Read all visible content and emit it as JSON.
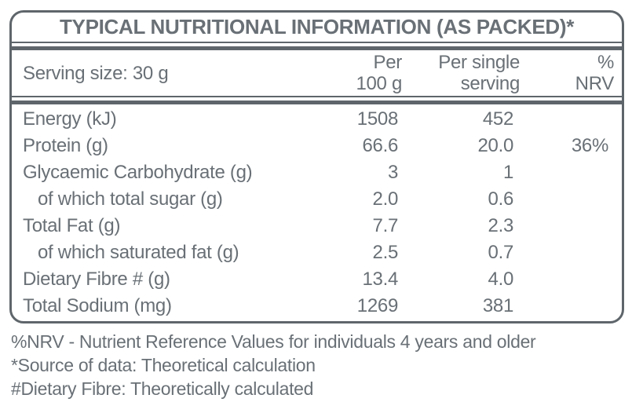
{
  "title": "TYPICAL NUTRITIONAL INFORMATION (AS PACKED)*",
  "header": {
    "serving_size": "Serving size: 30 g",
    "columns": [
      {
        "line1": "Per",
        "line2": "100 g"
      },
      {
        "line1": "Per single",
        "line2": "serving"
      },
      {
        "line1": "%",
        "line2": "NRV"
      }
    ]
  },
  "rows": [
    {
      "label": "Energy (kJ)",
      "indent": false,
      "per100": "1508",
      "per_serving": "452",
      "nrv": ""
    },
    {
      "label": "Protein (g)",
      "indent": false,
      "per100": "66.6",
      "per_serving": "20.0",
      "nrv": "36%"
    },
    {
      "label": "Glycaemic Carbohydrate (g)",
      "indent": false,
      "per100": "3",
      "per_serving": "1",
      "nrv": ""
    },
    {
      "label": "of which total sugar (g)",
      "indent": true,
      "per100": "2.0",
      "per_serving": "0.6",
      "nrv": ""
    },
    {
      "label": "Total Fat (g)",
      "indent": false,
      "per100": "7.7",
      "per_serving": "2.3",
      "nrv": ""
    },
    {
      "label": "of which saturated fat (g)",
      "indent": true,
      "per100": "2.5",
      "per_serving": "0.7",
      "nrv": ""
    },
    {
      "label": "Dietary Fibre # (g)",
      "indent": false,
      "per100": "13.4",
      "per_serving": "4.0",
      "nrv": ""
    },
    {
      "label": "Total Sodium (mg)",
      "indent": false,
      "per100": "1269",
      "per_serving": "381",
      "nrv": ""
    }
  ],
  "footnotes": [
    "%NRV - Nutrient Reference Values for individuals 4 years and older",
    "*Source of data: Theoretical calculation",
    "#Dietary Fibre: Theoretically calculated"
  ],
  "colors": {
    "text": "#697076",
    "border": "#5f666b",
    "background": "#ffffff"
  }
}
